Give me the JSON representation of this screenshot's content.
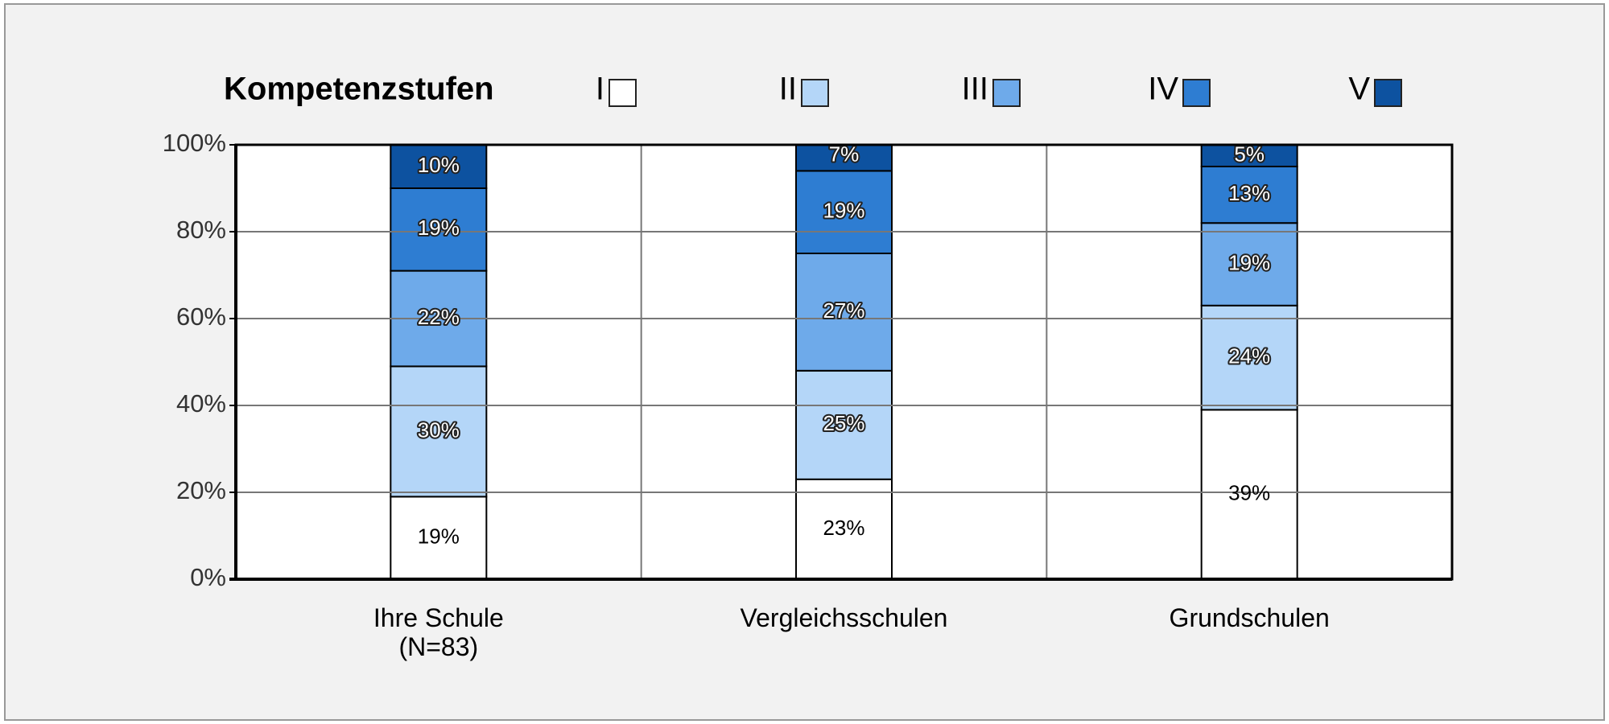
{
  "chart_data": {
    "type": "stacked_bar",
    "legend_title": "Kompetenzstufen",
    "categories": [
      "Ihre Schule\n(N=83)",
      "Vergleichsschulen",
      "Grundschulen"
    ],
    "series": [
      {
        "name": "I",
        "color": "#ffffff",
        "values": [
          19,
          23,
          39
        ],
        "value_labels": [
          "19%",
          "23%",
          "39%"
        ]
      },
      {
        "name": "II",
        "color": "#b4d6f8",
        "values": [
          30,
          25,
          24
        ],
        "value_labels": [
          "30%",
          "25%",
          "24%"
        ]
      },
      {
        "name": "III",
        "color": "#6eaaea",
        "values": [
          22,
          27,
          19
        ],
        "value_labels": [
          "22%",
          "27%",
          "19%"
        ]
      },
      {
        "name": "IV",
        "color": "#2e7dd2",
        "values": [
          19,
          19,
          13
        ],
        "value_labels": [
          "19%",
          "19%",
          "13%"
        ]
      },
      {
        "name": "V",
        "color": "#0d52a0",
        "values": [
          10,
          7,
          5
        ],
        "value_labels": [
          "10%",
          "7%",
          "5%"
        ]
      }
    ],
    "ylim": [
      0,
      100
    ],
    "yticks": [
      {
        "value": 0,
        "label": "0%"
      },
      {
        "value": 20,
        "label": "20%"
      },
      {
        "value": 40,
        "label": "40%"
      },
      {
        "value": 60,
        "label": "60%"
      },
      {
        "value": 80,
        "label": "80%"
      },
      {
        "value": 100,
        "label": "100%"
      }
    ],
    "grid": true
  }
}
